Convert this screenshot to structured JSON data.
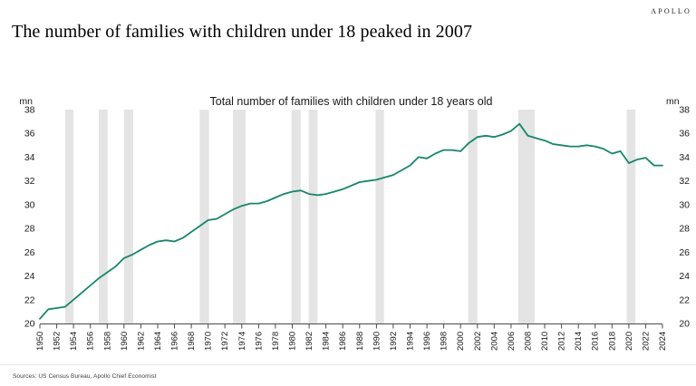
{
  "brand": {
    "logo": "APOLLO"
  },
  "header": {
    "title": "The number of families with children under 18 peaked in 2007"
  },
  "footer": {
    "sources": "Sources: US Census Bureau, Apollo Chief Economist"
  },
  "colors": {
    "line": "#10896c",
    "recession_band": "#e4e4e4",
    "axis": "#4a4a4a",
    "text": "#1a1a1a",
    "muted_text": "#3c3c3c"
  },
  "chart_data": {
    "type": "line",
    "title": "Total number of families with children under 18 years old",
    "unit_label": "mn",
    "ylabel": "mn",
    "xlabel": "",
    "ylim": [
      20,
      38
    ],
    "yticks": [
      20,
      22,
      24,
      26,
      28,
      30,
      32,
      34,
      36,
      38
    ],
    "xticks": [
      1950,
      1952,
      1954,
      1956,
      1958,
      1960,
      1962,
      1964,
      1966,
      1968,
      1970,
      1972,
      1974,
      1976,
      1978,
      1980,
      1982,
      1984,
      1986,
      1988,
      1990,
      1992,
      1994,
      1996,
      1998,
      2000,
      2002,
      2004,
      2006,
      2008,
      2010,
      2012,
      2014,
      2016,
      2018,
      2020,
      2022,
      2024
    ],
    "grid": false,
    "legend_position": "none",
    "x": [
      1950,
      1951,
      1952,
      1953,
      1954,
      1955,
      1956,
      1957,
      1958,
      1959,
      1960,
      1961,
      1962,
      1963,
      1964,
      1965,
      1966,
      1967,
      1968,
      1969,
      1970,
      1971,
      1972,
      1973,
      1974,
      1975,
      1976,
      1977,
      1978,
      1979,
      1980,
      1981,
      1982,
      1983,
      1984,
      1985,
      1986,
      1987,
      1988,
      1989,
      1990,
      1991,
      1992,
      1993,
      1994,
      1995,
      1996,
      1997,
      1998,
      1999,
      2000,
      2001,
      2002,
      2003,
      2004,
      2005,
      2006,
      2007,
      2008,
      2009,
      2010,
      2011,
      2012,
      2013,
      2014,
      2015,
      2016,
      2017,
      2018,
      2019,
      2020,
      2021,
      2022,
      2023,
      2024
    ],
    "series": [
      {
        "name": "Total number of families with children under 18 years old (mn)",
        "values": [
          20.4,
          21.2,
          21.3,
          21.4,
          22.0,
          22.6,
          23.2,
          23.8,
          24.3,
          24.8,
          25.5,
          25.8,
          26.2,
          26.6,
          26.9,
          27.0,
          26.9,
          27.2,
          27.7,
          28.2,
          28.7,
          28.8,
          29.2,
          29.6,
          29.9,
          30.1,
          30.1,
          30.3,
          30.6,
          30.9,
          31.1,
          31.2,
          30.9,
          30.8,
          30.9,
          31.1,
          31.3,
          31.6,
          31.9,
          32.0,
          32.1,
          32.3,
          32.5,
          32.9,
          33.3,
          34.0,
          33.9,
          34.3,
          34.6,
          34.6,
          34.5,
          35.2,
          35.7,
          35.8,
          35.7,
          35.9,
          36.2,
          36.8,
          35.8,
          35.6,
          35.4,
          35.1,
          35.0,
          34.9,
          34.9,
          35.0,
          34.9,
          34.7,
          34.3,
          34.5,
          33.5,
          33.8,
          33.95,
          33.3,
          33.3
        ]
      }
    ],
    "recession_bands": [
      [
        1953.0,
        1954.0
      ],
      [
        1957.0,
        1958.05
      ],
      [
        1960.0,
        1961.1
      ],
      [
        1969.0,
        1970.1
      ],
      [
        1972.95,
        1974.45
      ],
      [
        1979.9,
        1981.0
      ],
      [
        1981.95,
        1983.0
      ],
      [
        1989.9,
        1990.9
      ],
      [
        2000.9,
        2002.0
      ],
      [
        2006.85,
        2008.8
      ],
      [
        2019.75,
        2020.8
      ]
    ]
  }
}
